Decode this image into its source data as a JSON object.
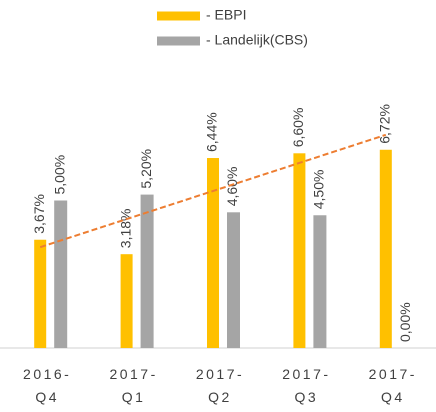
{
  "chart_data": {
    "type": "bar",
    "categories": [
      "2016-Q4",
      "2017-Q1",
      "2017-Q2",
      "2017-Q3",
      "2017-Q4"
    ],
    "series": [
      {
        "name": "- EBPI",
        "color": "#FFC000",
        "values": [
          3.67,
          3.18,
          6.44,
          6.6,
          6.72
        ],
        "value_labels": [
          "3,67%",
          "3,18%",
          "6,44%",
          "6,60%",
          "6,72%"
        ],
        "trendline": "linear",
        "trendline_color": "#ED7D31"
      },
      {
        "name": "- Landelijk(CBS)",
        "color": "#A5A5A5",
        "values": [
          5.0,
          5.2,
          4.6,
          4.5,
          0.0
        ],
        "value_labels": [
          "5,00%",
          "5,20%",
          "4,60%",
          "4,50%",
          "0,00%"
        ]
      }
    ],
    "ylim": [
      0,
      8
    ],
    "legend": "top"
  }
}
